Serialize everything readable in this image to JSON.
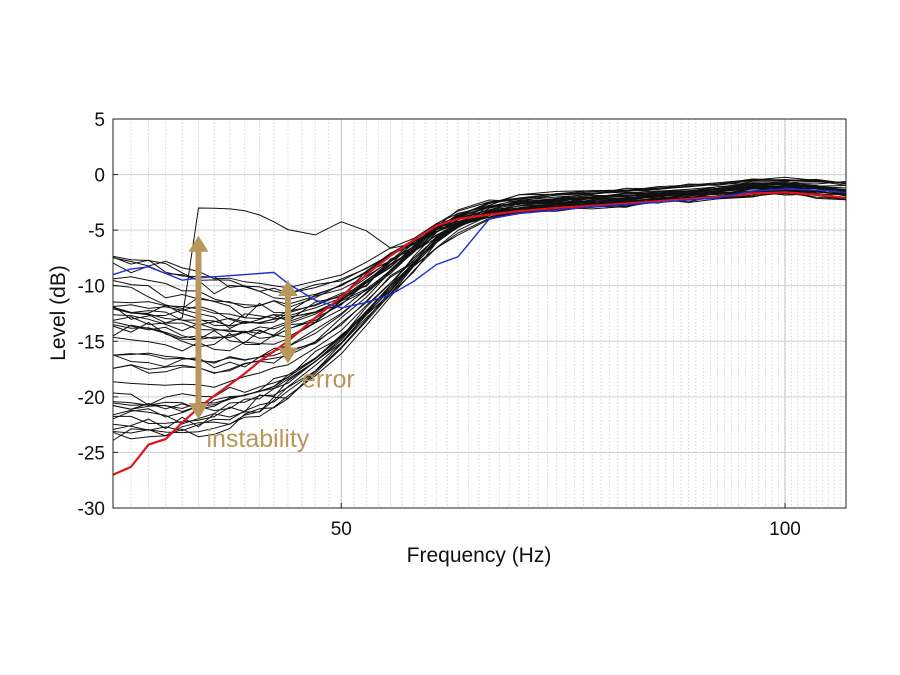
{
  "chart_data": {
    "type": "line",
    "title": "",
    "xlabel": "Frequency (Hz)",
    "ylabel": "Level (dB)",
    "xscale": "log",
    "xlim": [
      35,
      110
    ],
    "ylim": [
      -30,
      5
    ],
    "x_ticks": [
      50,
      100
    ],
    "x_tick_labels": [
      "50",
      "100"
    ],
    "y_ticks": [
      5,
      0,
      -5,
      -10,
      -15,
      -20,
      -25,
      -30
    ],
    "y_tick_labels": [
      "5",
      "0",
      "-5",
      "-10",
      "-15",
      "-20",
      "-25",
      "-30"
    ],
    "grid": true,
    "frequencies": [
      35,
      36,
      37,
      38,
      39,
      40,
      41,
      42,
      43,
      44,
      45,
      46,
      48,
      50,
      52,
      54,
      56,
      58,
      60,
      63,
      66,
      70,
      74,
      78,
      82,
      86,
      90,
      95,
      100,
      105,
      110
    ],
    "series_highlight": [
      {
        "name": "red",
        "color": "#e0141c",
        "values": [
          -27.0,
          -26.3,
          -24.3,
          -23.8,
          -22.3,
          -21.0,
          -19.9,
          -18.9,
          -17.9,
          -16.8,
          -15.9,
          -15.0,
          -12.9,
          -11.0,
          -9.0,
          -7.3,
          -5.9,
          -4.6,
          -4.0,
          -3.6,
          -3.3,
          -3.0,
          -2.8,
          -2.6,
          -2.4,
          -2.2,
          -2.0,
          -1.7,
          -1.6,
          -1.8,
          -2.1
        ]
      },
      {
        "name": "blue",
        "color": "#1a2fd6",
        "values": [
          -9.0,
          -8.5,
          -8.3,
          -8.9,
          -9.5,
          -9.3,
          -9.2,
          -9.1,
          -9.0,
          -8.9,
          -8.8,
          -9.8,
          -11.3,
          -12.0,
          -11.5,
          -10.8,
          -9.6,
          -8.1,
          -7.4,
          -4.0,
          -3.5,
          -3.2,
          -2.9,
          -2.7,
          -2.5,
          -2.3,
          -2.1,
          -1.5,
          -1.3,
          -1.4,
          -1.6
        ]
      }
    ],
    "series_count_black": 40,
    "black_spread_at_low_freq_db": [
      -24,
      -6.5
    ],
    "annotations": [
      {
        "text": "instability",
        "color": "#b8985a",
        "arrow_span_db": [
          -22,
          -5.5
        ],
        "arrow_at_hz": 40
      },
      {
        "text": "error",
        "color": "#b8985a",
        "arrow_span_db": [
          -17,
          -9.5
        ],
        "arrow_at_hz": 46
      }
    ]
  }
}
